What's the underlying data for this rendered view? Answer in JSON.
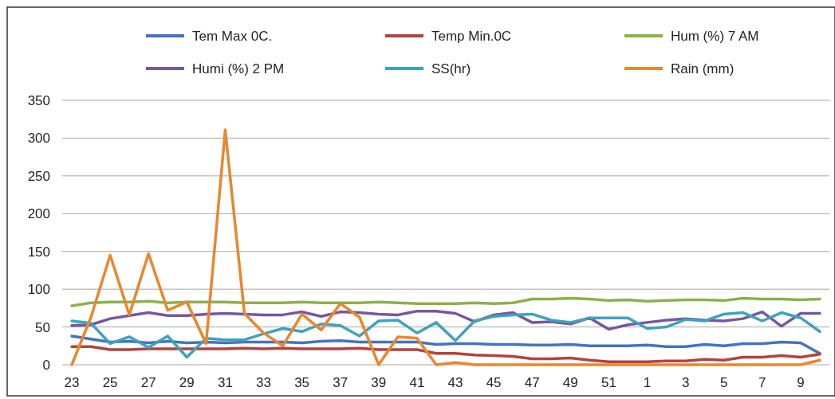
{
  "chart_data": {
    "type": "line",
    "categories": [
      "23",
      null,
      "25",
      null,
      "27",
      null,
      "29",
      null,
      "31",
      null,
      "33",
      null,
      "35",
      null,
      "37",
      null,
      "39",
      null,
      "41",
      null,
      "43",
      null,
      "45",
      null,
      "47",
      null,
      "49",
      null,
      "51",
      null,
      "1",
      null,
      "3",
      null,
      "5",
      null,
      "7",
      null,
      "9",
      null
    ],
    "series": [
      {
        "name": "Tem Max 0C.",
        "color": "#4472c4",
        "values": [
          38,
          34,
          30,
          31,
          29,
          31,
          29,
          30,
          29,
          30,
          30,
          30,
          29,
          31,
          32,
          30,
          30,
          30,
          30,
          27,
          28,
          28,
          27,
          27,
          26,
          26,
          27,
          25,
          25,
          25,
          26,
          24,
          24,
          27,
          25,
          28,
          28,
          30,
          29,
          15
        ]
      },
      {
        "name": "Temp Min.0C",
        "color": "#b3423f",
        "values": [
          24,
          24,
          20,
          20,
          21,
          21,
          21,
          21,
          21,
          22,
          21,
          22,
          21,
          21,
          21,
          22,
          20,
          20,
          20,
          15,
          15,
          13,
          12,
          11,
          8,
          8,
          9,
          6,
          4,
          4,
          4,
          5,
          5,
          7,
          6,
          10,
          10,
          12,
          10,
          14
        ]
      },
      {
        "name": "Hum (%) 7 AM",
        "color": "#8cb04a",
        "values": [
          78,
          82,
          83,
          83,
          84,
          82,
          83,
          83,
          83,
          82,
          82,
          82,
          83,
          82,
          82,
          82,
          83,
          82,
          81,
          81,
          81,
          82,
          81,
          82,
          87,
          87,
          88,
          87,
          85,
          86,
          84,
          85,
          86,
          86,
          85,
          88,
          87,
          87,
          86,
          87
        ]
      },
      {
        "name": "Humi (%) 2 PM",
        "color": "#7756a1",
        "values": [
          52,
          53,
          61,
          65,
          69,
          65,
          65,
          67,
          68,
          67,
          66,
          66,
          70,
          64,
          70,
          69,
          67,
          66,
          71,
          71,
          68,
          57,
          66,
          69,
          56,
          57,
          54,
          62,
          47,
          53,
          56,
          59,
          61,
          59,
          58,
          61,
          70,
          51,
          68,
          68
        ]
      },
      {
        "name": "SS(hr)",
        "color": "#3ea2be",
        "values": [
          58,
          55,
          28,
          37,
          23,
          38,
          10,
          35,
          33,
          33,
          41,
          48,
          44,
          54,
          52,
          38,
          58,
          59,
          42,
          56,
          32,
          58,
          64,
          66,
          67,
          59,
          56,
          62,
          62,
          62,
          48,
          50,
          60,
          58,
          67,
          69,
          58,
          69,
          62,
          44
        ]
      },
      {
        "name": "Rain (mm)",
        "color": "#e8872e",
        "values": [
          0,
          63,
          145,
          66,
          147,
          72,
          83,
          28,
          311,
          68,
          42,
          25,
          67,
          46,
          81,
          63,
          0,
          37,
          35,
          0,
          3,
          0,
          0,
          0,
          0,
          0,
          0,
          0,
          0,
          0,
          0,
          0,
          0,
          0,
          0,
          0,
          0,
          0,
          0,
          6
        ]
      }
    ],
    "ylim": [
      0,
      350
    ],
    "yticks": [
      0,
      50,
      100,
      150,
      200,
      250,
      300,
      350
    ],
    "grid": "y",
    "legend": "top",
    "marker": "none",
    "line_style": "solid"
  }
}
